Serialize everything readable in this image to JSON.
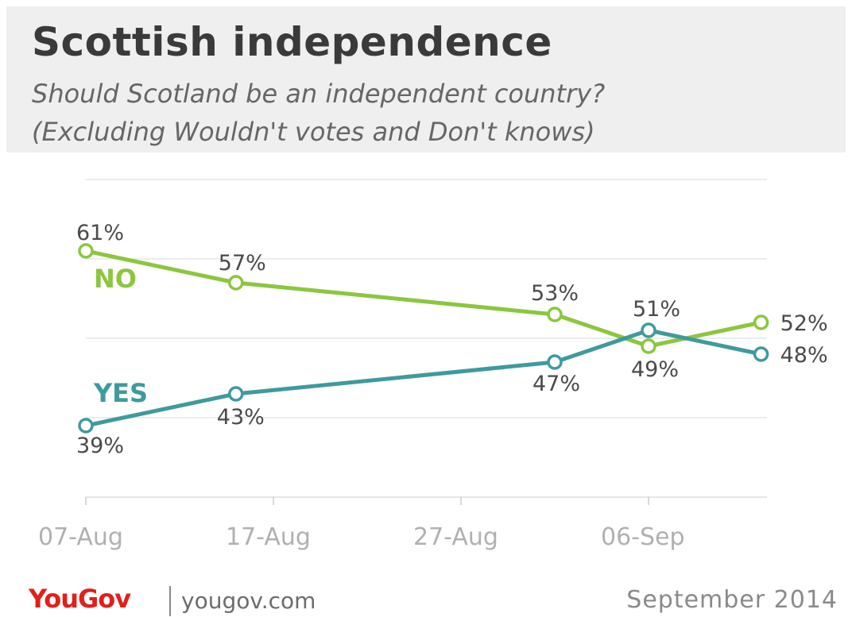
{
  "header": {
    "title": "Scottish independence",
    "subtitle_line1": "Should Scotland be an independent country?",
    "subtitle_line2": "(Excluding Wouldn't votes and Don't knows)"
  },
  "footer": {
    "logo_you": "You",
    "logo_gov": "Gov",
    "site": "yougov.com",
    "date": "September 2014"
  },
  "colors": {
    "no": "#8cc63f",
    "yes": "#3f9a9e",
    "grid": "#e6e6e6",
    "axis_text": "#b0b0b0",
    "label_text": "#4a4a4a"
  },
  "chart_data": {
    "type": "line",
    "x_ticks": [
      "07-Aug",
      "17-Aug",
      "27-Aug",
      "06-Sep"
    ],
    "x": [
      "2014-08-07",
      "2014-08-15",
      "2014-09-01",
      "2014-09-06",
      "2014-09-12"
    ],
    "series": [
      {
        "name": "NO",
        "values": [
          61,
          57,
          53,
          49,
          52
        ],
        "value_labels": [
          "61%",
          "57%",
          "53%",
          "49%",
          "52%"
        ]
      },
      {
        "name": "YES",
        "values": [
          39,
          43,
          47,
          51,
          48
        ],
        "value_labels": [
          "39%",
          "43%",
          "47%",
          "51%",
          "48%"
        ]
      }
    ],
    "ylim": [
      30,
      70
    ],
    "grid": true
  }
}
